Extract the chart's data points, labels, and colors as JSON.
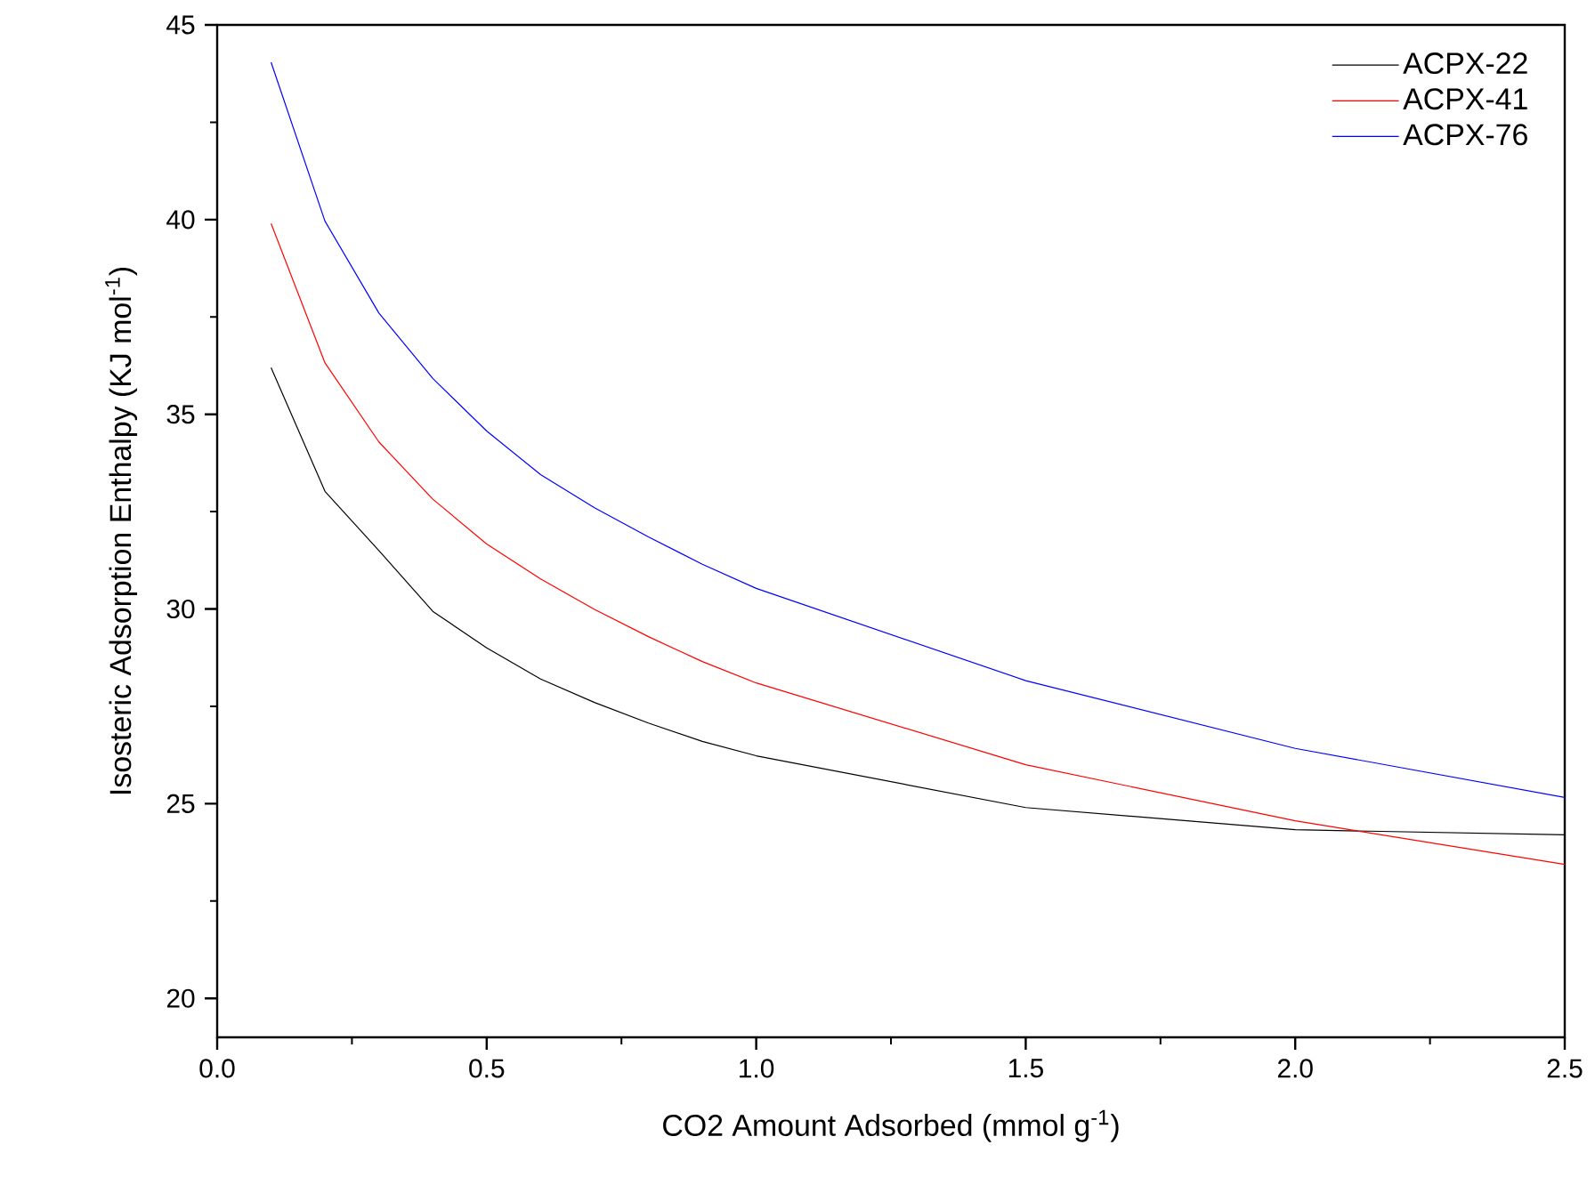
{
  "chart_data": {
    "type": "line",
    "xlabel": "CO2 Amount Adsorbed (mmol g$^{-1}$)",
    "ylabel": "Isosteric Adsorption Enthalpy (KJ mol$^{-1}$)",
    "x": [
      0.1,
      0.2,
      0.3,
      0.4,
      0.5,
      0.6,
      0.7,
      0.8,
      0.9,
      1.0,
      1.5,
      2.0,
      2.5
    ],
    "series": [
      {
        "name": "ACPX-22",
        "color": "#000000",
        "values": [
          36.2,
          33.02,
          31.5,
          29.94,
          29.0,
          28.2,
          27.6,
          27.07,
          26.6,
          26.23,
          24.9,
          24.33,
          24.2
        ]
      },
      {
        "name": "ACPX-41",
        "color": "#ff0000",
        "values": [
          39.9,
          36.32,
          34.29,
          32.82,
          31.67,
          30.77,
          29.99,
          29.29,
          28.65,
          28.1,
          26.0,
          24.56,
          23.44
        ]
      },
      {
        "name": "ACPX-76",
        "color": "#0000ff",
        "values": [
          44.04,
          39.96,
          37.6,
          35.92,
          34.57,
          33.45,
          32.6,
          31.85,
          31.15,
          30.53,
          28.16,
          26.42,
          25.16
        ]
      }
    ],
    "xlim": [
      0,
      2.5
    ],
    "ylim": [
      19,
      45
    ],
    "xticks": [
      {
        "value": 0,
        "label": "0.0"
      },
      0.5,
      {
        "value": 1,
        "label": "1.0"
      },
      1.5,
      {
        "value": 2,
        "label": "2.0"
      },
      2.5
    ],
    "yticks": [
      20,
      25,
      30,
      35,
      40,
      45
    ],
    "legend": "top right",
    "grid": false,
    "marker": "none",
    "line_style": "solid"
  }
}
